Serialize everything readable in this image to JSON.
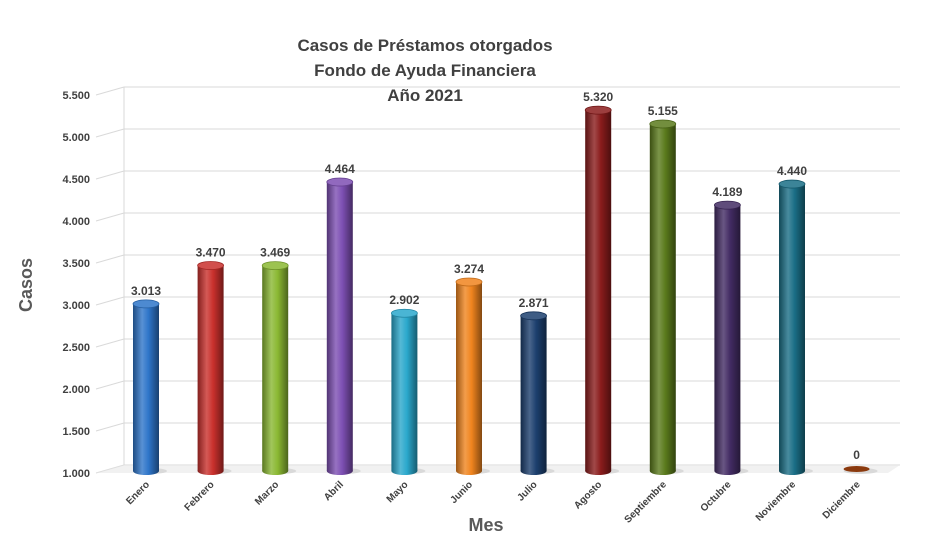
{
  "chart_data": {
    "type": "bar",
    "title_lines": [
      "Casos de Préstamos otorgados",
      "Fondo de Ayuda Financiera",
      "Año 2021"
    ],
    "xlabel": "Mes",
    "ylabel": "Casos",
    "categories": [
      "Enero",
      "Febrero",
      "Marzo",
      "Abril",
      "Mayo",
      "Junio",
      "Julio",
      "Agosto",
      "Septiembre",
      "Octubre",
      "Noviembre",
      "Diciembre"
    ],
    "values": [
      3013,
      3470,
      3469,
      4464,
      2902,
      3274,
      2871,
      5320,
      5155,
      4189,
      4440,
      0
    ],
    "value_labels": [
      "3.013",
      "3.470",
      "3.469",
      "4.464",
      "2.902",
      "3.274",
      "2.871",
      "5.320",
      "5.155",
      "4.189",
      "4.440",
      "0"
    ],
    "yticks": [
      "1.000",
      "1.500",
      "2.000",
      "2.500",
      "3.000",
      "3.500",
      "4.000",
      "4.500",
      "5.000",
      "5.500"
    ],
    "ylim": [
      1000,
      5500
    ],
    "grid": true,
    "legend": "none",
    "colors": [
      "#2e75c9",
      "#c9302c",
      "#8ab832",
      "#7d4fb3",
      "#2aa8cc",
      "#f0841e",
      "#1c3f6e",
      "#8a1c1c",
      "#5a7a1c",
      "#432c64",
      "#1a6e86",
      "#8b3a0e"
    ]
  }
}
